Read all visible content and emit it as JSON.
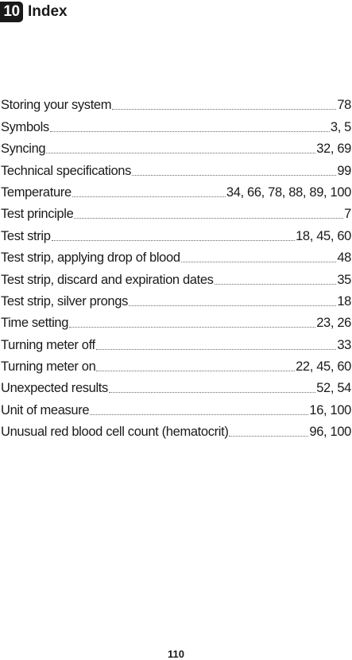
{
  "header": {
    "chapter_number": "10",
    "chapter_title": "Index"
  },
  "entries": [
    {
      "term": "Storing your system",
      "pages": "78"
    },
    {
      "term": "Symbols",
      "pages": "3, 5"
    },
    {
      "term": "Syncing",
      "pages": "32, 69"
    },
    {
      "term": "Technical specifications",
      "pages": "99"
    },
    {
      "term": "Temperature",
      "pages": "34, 66, 78, 88, 89, 100"
    },
    {
      "term": "Test principle",
      "pages": "7"
    },
    {
      "term": "Test strip",
      "pages": "18, 45, 60"
    },
    {
      "term": "Test strip, applying drop of blood",
      "pages": "48"
    },
    {
      "term": "Test strip, discard and expiration dates",
      "pages": "35"
    },
    {
      "term": "Test strip, silver prongs",
      "pages": "18"
    },
    {
      "term": "Time setting",
      "pages": "23, 26"
    },
    {
      "term": "Turning meter off",
      "pages": "33"
    },
    {
      "term": "Turning meter on",
      "pages": "22, 45, 60"
    },
    {
      "term": "Unexpected results",
      "pages": "52, 54"
    },
    {
      "term": "Unit of measure",
      "pages": "16, 100"
    },
    {
      "term": "Unusual red blood cell count (hematocrit)",
      "pages": "96, 100"
    }
  ],
  "footer": {
    "page_number": "110"
  }
}
